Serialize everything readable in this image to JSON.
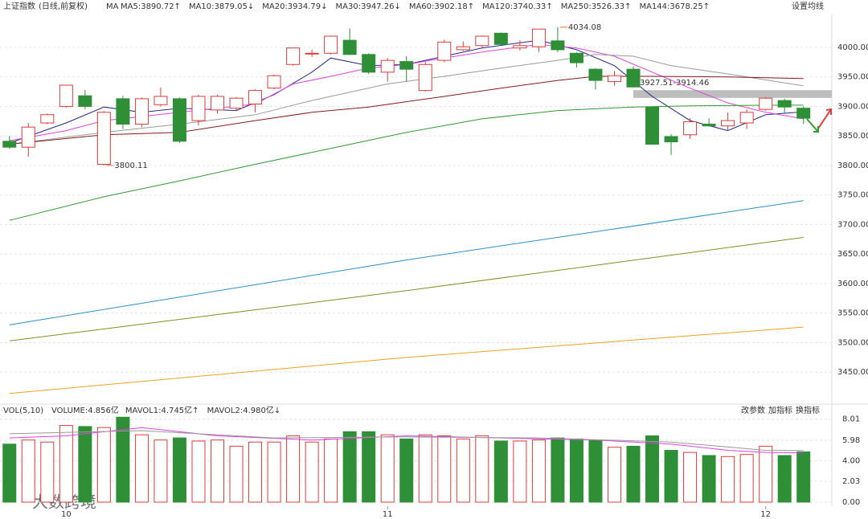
{
  "chart_data": [
    {
      "type": "candlestick",
      "title": "上证指数",
      "subtitle": "(日线,前复权)",
      "legend_title": "MA",
      "settings_label": "设置均线",
      "up_color": "#e03a3a",
      "down_color": "#2f8f37",
      "grid": true,
      "xlim": [
        -0.5,
        43.5
      ],
      "xticks": [
        {
          "value": 3,
          "label": "10"
        },
        {
          "value": 20,
          "label": "11"
        },
        {
          "value": 40,
          "label": "12"
        }
      ],
      "ylim": [
        3400,
        4053
      ],
      "yticks": [
        {
          "value": 3450,
          "label": "3450.00"
        },
        {
          "value": 3500,
          "label": "3500.00"
        },
        {
          "value": 3550,
          "label": "3550.00"
        },
        {
          "value": 3600,
          "label": "3600.00"
        },
        {
          "value": 3650,
          "label": "3650.00"
        },
        {
          "value": 3700,
          "label": "3700.00"
        },
        {
          "value": 3750,
          "label": "3750.00"
        },
        {
          "value": 3800,
          "label": "3800.00"
        },
        {
          "value": 3850,
          "label": "3850.00"
        },
        {
          "value": 3900,
          "label": "3900.00"
        },
        {
          "value": 3950,
          "label": "3950.00"
        },
        {
          "value": 4000,
          "label": "4000.00"
        }
      ],
      "open": [
        3841,
        3831,
        3872,
        3900,
        3918,
        3802,
        3913,
        3870,
        3903,
        3913,
        3876,
        3894,
        3897,
        3904,
        3931,
        3971,
        3989,
        3990,
        4012,
        3988,
        3958,
        3976,
        3927,
        3978,
        3996,
        4003,
        4024,
        3999,
        4001,
        4011,
        3990,
        3963,
        3942,
        3963,
        3899,
        3849,
        3852,
        3870,
        3867,
        3872,
        3895,
        3910,
        3897
      ],
      "close": [
        3831,
        3865,
        3886,
        3936,
        3900,
        3890,
        3870,
        3913,
        3917,
        3841,
        3917,
        3917,
        3914,
        3927,
        3952,
        3999,
        3990,
        4019,
        3988,
        3958,
        3978,
        3963,
        3971,
        4009,
        4001,
        4019,
        4005,
        4003,
        4031,
        3996,
        3974,
        3944,
        3952,
        3933,
        3836,
        3840,
        3874,
        3867,
        3876,
        3890,
        3914,
        3899,
        3880
      ],
      "high": [
        3850,
        3872,
        3888,
        3936,
        3928,
        3892,
        3918,
        3915,
        3932,
        3915,
        3920,
        3920,
        3916,
        3929,
        3954,
        3999,
        3996,
        4020,
        4032,
        3990,
        3982,
        3985,
        3975,
        4013,
        4010,
        4020,
        4025,
        4012,
        4031,
        4034.08,
        3992,
        3965,
        3960,
        3968,
        3900,
        3853,
        3880,
        3880,
        3890,
        3895,
        3916,
        3913,
        3900
      ],
      "low": [
        3828,
        3815,
        3870,
        3898,
        3895,
        3800.11,
        3862,
        3865,
        3900,
        3838,
        3868,
        3888,
        3893,
        3890,
        3929,
        3969,
        3984,
        3988,
        3987,
        3955,
        3942,
        3942,
        3925,
        3975,
        3994,
        3998,
        4004,
        3995,
        3992,
        3992,
        3966,
        3929,
        3935,
        3932,
        3835,
        3818,
        3845,
        3866,
        3860,
        3862,
        3893,
        3888,
        3870
      ],
      "series": [
        {
          "name": "MA5:3890.72↑",
          "color": "#27288a",
          "x": [
            0,
            3,
            5,
            7,
            9,
            12,
            14,
            16,
            17,
            19,
            21,
            23,
            25,
            28,
            30,
            32,
            34,
            36,
            38,
            40,
            42
          ],
          "values": [
            3838,
            3872,
            3899,
            3890,
            3897,
            3893,
            3920,
            3958,
            3982,
            3969,
            3971,
            3985,
            3999,
            4012,
            3996,
            3969,
            3917,
            3876,
            3859,
            3886,
            3890.72
          ]
        },
        {
          "name": "MA10:3879.05↓",
          "color": "#e040e0",
          "x": [
            0,
            3,
            5,
            7,
            9,
            11,
            13,
            15,
            17,
            19,
            21,
            23,
            25,
            28,
            30,
            32,
            34,
            36,
            38,
            40,
            42
          ],
          "values": [
            3842,
            3859,
            3876,
            3883,
            3890,
            3897,
            3904,
            3938,
            3951,
            3965,
            3971,
            3982,
            3992,
            4005,
            3999,
            3985,
            3958,
            3931,
            3906,
            3890,
            3879.05
          ]
        },
        {
          "name": "MA20:3934.79↓",
          "color": "#9a9a9a",
          "x": [
            0,
            5,
            9,
            13,
            16,
            20,
            23,
            26,
            29,
            31,
            33,
            35,
            38,
            42
          ],
          "values": [
            3836,
            3856,
            3870,
            3886,
            3910,
            3938,
            3951,
            3965,
            3978,
            3988,
            3985,
            3969,
            3955,
            3934.79
          ]
        },
        {
          "name": "MA30:3947.26↓",
          "color": "#8b1a1a",
          "x": [
            0,
            5,
            9,
            13,
            16,
            19,
            23,
            26,
            29,
            31,
            34,
            38,
            42
          ],
          "values": [
            3836,
            3852,
            3856,
            3876,
            3890,
            3899,
            3917,
            3931,
            3944,
            3951,
            3951,
            3950,
            3947.26
          ]
        },
        {
          "name": "MA60:3902.18↑",
          "color": "#2e9c2e",
          "x": [
            0,
            5,
            9,
            13,
            17,
            21,
            25,
            29,
            33,
            36,
            40,
            42
          ],
          "values": [
            3707,
            3747,
            3774,
            3802,
            3829,
            3856,
            3879,
            3893,
            3899,
            3901,
            3902,
            3902.18
          ]
        },
        {
          "name": "MA120:3740.33↑",
          "color": "#2a8fd0",
          "x": [
            0,
            21,
            42
          ],
          "values": [
            3530,
            3640,
            3740.33
          ]
        },
        {
          "name": "MA250:3526.33↑",
          "color": "#f0a020",
          "x": [
            0,
            21,
            42
          ],
          "values": [
            3414,
            3475,
            3526.33
          ]
        },
        {
          "name": "MA144:3678.25↑",
          "color": "#8a8a20",
          "x": [
            0,
            21,
            42
          ],
          "values": [
            3503,
            3588,
            3678.25
          ]
        }
      ],
      "annotations": [
        {
          "text": "4034.08",
          "x": 29,
          "y": 4034.08
        },
        {
          "text": "3800.11",
          "x": 5,
          "y": 3800.11
        }
      ],
      "band": {
        "label": "3927.51-3914.46",
        "x": 33,
        "top": 3927.51,
        "bottom": 3914.46
      }
    },
    {
      "type": "bar",
      "title": "VOL(5,10)",
      "legend": "VOLUME:4.856亿",
      "buttons": [
        "改参数",
        "加指标",
        "换指标"
      ],
      "ylim": [
        0,
        8.3
      ],
      "yticks": [
        {
          "value": 0,
          "label": "0.00"
        },
        {
          "value": 2.03,
          "label": "2.03"
        },
        {
          "value": 4,
          "label": "4.00"
        },
        {
          "value": 5.98,
          "label": "5.98"
        },
        {
          "value": 8.01,
          "label": "8.01"
        }
      ],
      "values": [
        5.6,
        6.0,
        5.8,
        7.4,
        7.3,
        7.2,
        8.2,
        6.5,
        6.0,
        6.2,
        5.9,
        6.0,
        5.4,
        5.8,
        5.8,
        6.4,
        5.8,
        6.1,
        6.8,
        6.8,
        6.5,
        6.1,
        6.5,
        6.4,
        6.1,
        6.4,
        5.9,
        5.9,
        6.0,
        6.2,
        6.1,
        6.0,
        5.3,
        5.4,
        6.4,
        5.0,
        4.8,
        4.5,
        4.4,
        4.6,
        5.4,
        4.5,
        4.856
      ],
      "series": [
        {
          "name": "MAVOL1:4.745亿↑",
          "color": "#e040e0",
          "x": [
            0,
            3,
            7,
            11,
            16,
            21,
            26,
            31,
            35,
            38,
            40,
            42
          ],
          "values": [
            6.2,
            6.4,
            7.2,
            6.4,
            6.0,
            6.4,
            6.2,
            6.0,
            5.6,
            5.0,
            4.8,
            4.745
          ]
        },
        {
          "name": "MAVOL2:4.980亿↓",
          "color": "#9a9a9a",
          "x": [
            0,
            7,
            14,
            21,
            28,
            35,
            40,
            42
          ],
          "values": [
            6.6,
            6.9,
            6.2,
            6.3,
            6.2,
            5.8,
            5.0,
            4.98
          ]
        }
      ]
    }
  ],
  "watermark": "大数跨境"
}
